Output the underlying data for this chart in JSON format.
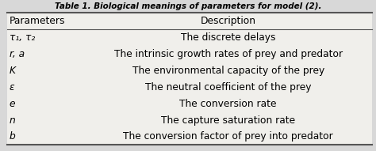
{
  "title": "Table 1. Biological meanings of parameters for model (2).",
  "col_headers": [
    "Parameters",
    "Description"
  ],
  "rows": [
    [
      "τ₁, τ₂",
      "The discrete delays"
    ],
    [
      "r, a",
      "The intrinsic growth rates of prey and predator"
    ],
    [
      "K",
      "The environmental capacity of the prey"
    ],
    [
      "ε",
      "The neutral coefficient of the prey"
    ],
    [
      "e",
      "The conversion rate"
    ],
    [
      "n",
      "The capture saturation rate"
    ],
    [
      "b",
      "The conversion factor of prey into predator"
    ]
  ],
  "bg_color": "#d8d8d8",
  "table_bg": "#f0efeb",
  "title_fontsize": 7.5,
  "header_fontsize": 8.8,
  "row_fontsize": 8.8,
  "col_split": 0.21,
  "figsize": [
    4.74,
    1.91
  ],
  "dpi": 100,
  "line_color": "#555555",
  "thick_lw": 1.5,
  "thin_lw": 0.8
}
